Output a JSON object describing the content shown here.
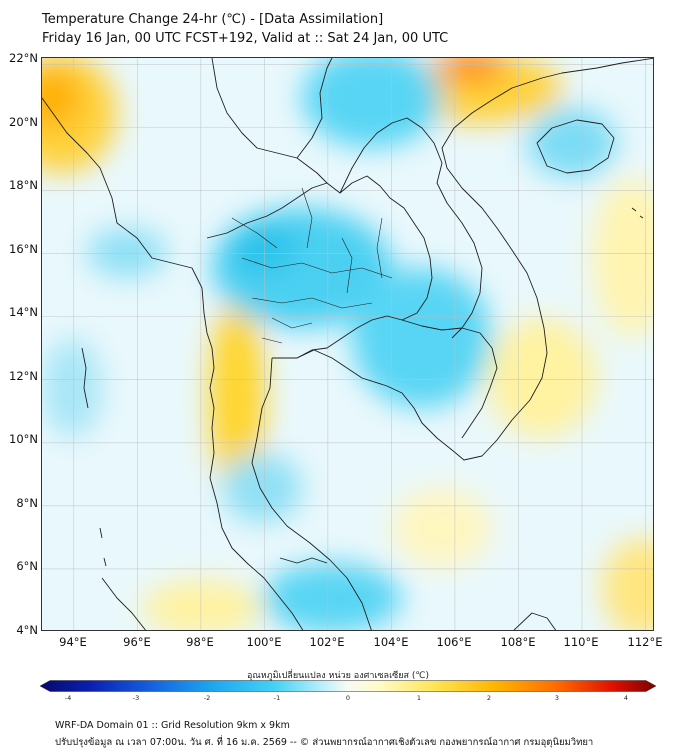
{
  "header": {
    "title_line1": "Temperature Change 24-hr (℃) - [Data Assimilation]",
    "title_line2": "Friday 16 Jan, 00 UTC FCST+192, Valid at :: Sat 24 Jan, 00 UTC"
  },
  "map": {
    "lat_labels": [
      "22°N",
      "20°N",
      "18°N",
      "16°N",
      "14°N",
      "12°N",
      "10°N",
      "8°N",
      "6°N",
      "4°N"
    ],
    "lon_labels": [
      "94°E",
      "96°E",
      "98°E",
      "100°E",
      "102°E",
      "104°E",
      "106°E",
      "108°E",
      "110°E",
      "112°E"
    ],
    "lat_values": [
      22,
      20,
      18,
      16,
      14,
      12,
      10,
      8,
      6,
      4
    ],
    "lon_values": [
      94,
      96,
      98,
      100,
      102,
      104,
      106,
      108,
      110,
      112
    ],
    "extent": {
      "lon_min": 93,
      "lon_max": 112.3,
      "lat_min": 4,
      "lat_max": 22.2
    },
    "gridlines": true,
    "colors": {
      "land_border": "#222222",
      "cool_strong": "#3ecdf0",
      "cool_light": "#a8e6f7",
      "neutral": "#e9f8fc",
      "warm_light": "#fff3a8",
      "warm_strong": "#ffc200",
      "hot": "#ff8a1c"
    }
  },
  "colorbar": {
    "title": "อุณหภูมิเปลี่ยนแปลง หน่วย องศาเซลเซียส (℃)",
    "ticks": [
      "-4",
      "-3",
      "-2",
      "-1",
      "0",
      "1",
      "2",
      "3",
      "4"
    ],
    "tick_values": [
      -4,
      -3,
      -2,
      -1,
      0,
      1,
      2,
      3,
      4
    ],
    "min": -4,
    "max": 4
  },
  "footer": {
    "line1": "WRF-DA Domain 01 :: Grid Resolution 9km x 9km",
    "line2": "ปรับปรุงข้อมูล ณ เวลา 07:00น. วัน ศ. ที่ 16 ม.ค. 2569 -- © ส่วนพยากรณ์อากาศเชิงตัวเลข กองพยากรณ์อากาศ กรมอุตุนิยมวิทยา"
  }
}
